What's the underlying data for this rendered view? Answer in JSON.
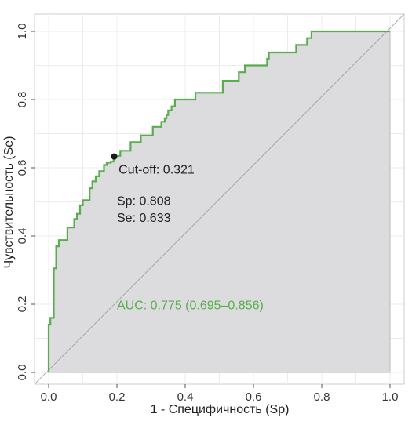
{
  "chart_data": {
    "type": "line",
    "xlabel": "1 - Специфичность (Sp)",
    "ylabel": "Чувствительность (Se)",
    "xlim": [
      0,
      1
    ],
    "ylim": [
      0,
      1
    ],
    "x_ticks": [
      "0.0",
      "0.2",
      "0.4",
      "0.6",
      "0.8",
      "1.0"
    ],
    "y_ticks": [
      "0.0",
      "0.2",
      "0.4",
      "0.6",
      "0.8",
      "1.0"
    ],
    "grid": true,
    "reference_line": "diagonal",
    "series": [
      {
        "color": "#5aad4e",
        "fill": "#dcdcde",
        "x": [
          0.0,
          0.0,
          0.005,
          0.005,
          0.015,
          0.015,
          0.022,
          0.022,
          0.03,
          0.03,
          0.055,
          0.055,
          0.075,
          0.075,
          0.083,
          0.083,
          0.092,
          0.092,
          0.1,
          0.1,
          0.12,
          0.12,
          0.128,
          0.128,
          0.138,
          0.138,
          0.148,
          0.148,
          0.162,
          0.162,
          0.17,
          0.17,
          0.182,
          0.182,
          0.19,
          0.19,
          0.195,
          0.195,
          0.21,
          0.21,
          0.24,
          0.24,
          0.27,
          0.27,
          0.305,
          0.305,
          0.33,
          0.33,
          0.34,
          0.34,
          0.345,
          0.345,
          0.35,
          0.35,
          0.36,
          0.36,
          0.37,
          0.37,
          0.43,
          0.43,
          0.51,
          0.51,
          0.557,
          0.557,
          0.575,
          0.575,
          0.64,
          0.64,
          0.645,
          0.645,
          0.725,
          0.725,
          0.757,
          0.757,
          0.77,
          0.77,
          0.78,
          0.78,
          1.0
        ],
        "y": [
          0.0,
          0.14,
          0.14,
          0.16,
          0.16,
          0.305,
          0.305,
          0.37,
          0.37,
          0.388,
          0.388,
          0.425,
          0.425,
          0.45,
          0.45,
          0.465,
          0.465,
          0.49,
          0.49,
          0.505,
          0.505,
          0.54,
          0.54,
          0.56,
          0.56,
          0.575,
          0.575,
          0.59,
          0.59,
          0.608,
          0.608,
          0.615,
          0.615,
          0.618,
          0.618,
          0.633,
          0.633,
          0.635,
          0.635,
          0.65,
          0.65,
          0.675,
          0.675,
          0.695,
          0.695,
          0.72,
          0.72,
          0.735,
          0.735,
          0.745,
          0.745,
          0.755,
          0.755,
          0.768,
          0.768,
          0.78,
          0.78,
          0.8,
          0.8,
          0.82,
          0.82,
          0.855,
          0.855,
          0.88,
          0.88,
          0.9,
          0.9,
          0.92,
          0.92,
          0.938,
          0.938,
          0.96,
          0.96,
          0.98,
          0.98,
          1.0,
          1.0,
          1.0,
          1.0
        ]
      }
    ],
    "cutoff_point": {
      "x": 0.192,
      "y": 0.633,
      "color": "#1a1a1a"
    },
    "annotations": {
      "cutoff": {
        "text": "Cut-off: 0.321",
        "x": 0.205,
        "y": 0.583,
        "color": "#222222"
      },
      "sp": {
        "text": "Sp: 0.808",
        "x": 0.2,
        "y": 0.491,
        "color": "#222222"
      },
      "se": {
        "text": "Se: 0.633",
        "x": 0.2,
        "y": 0.441,
        "color": "#222222"
      },
      "auc": {
        "text": "AUC: 0.775 (0.695–0.856)",
        "x": 0.2,
        "y": 0.185,
        "color": "#5aad4e"
      }
    }
  }
}
